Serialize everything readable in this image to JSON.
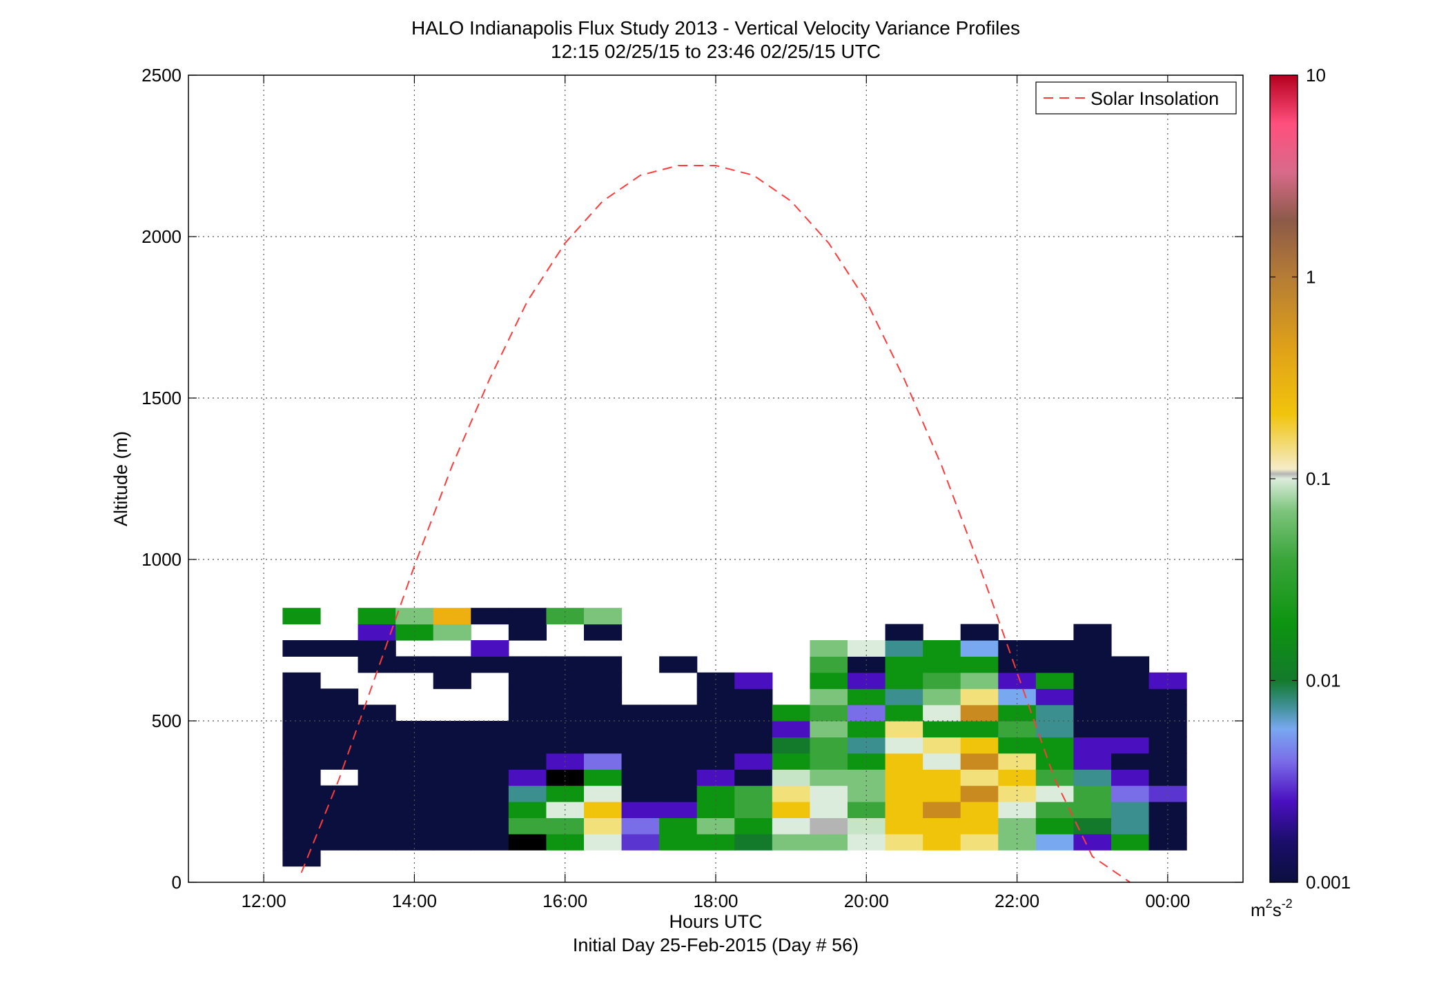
{
  "chart_data": {
    "type": "heatmap",
    "title": "HALO Indianapolis Flux Study 2013 - Vertical Velocity Variance Profiles",
    "subtitle": "12:15 02/25/15 to 23:46 02/25/15  UTC",
    "xlabel": "Hours UTC",
    "xlabel2": "Initial Day 25-Feb-2015 (Day # 56)",
    "ylabel": "Altitude (m)",
    "xlim": [
      11.0,
      25.0
    ],
    "ylim": [
      0,
      2500
    ],
    "x_ticks": [
      12,
      14,
      16,
      18,
      20,
      22,
      24
    ],
    "x_tick_labels": [
      "12:00",
      "14:00",
      "16:00",
      "18:00",
      "20:00",
      "22:00",
      "00:00"
    ],
    "y_ticks": [
      0,
      500,
      1000,
      1500,
      2000,
      2500
    ],
    "y_tick_labels": [
      "0",
      "500",
      "1000",
      "1500",
      "2000",
      "2500"
    ],
    "grid": true,
    "legend": {
      "location": "top-right",
      "entries": [
        "Solar Insolation"
      ]
    },
    "colorbar": {
      "scale": "log",
      "range": [
        0.001,
        10
      ],
      "ticks": [
        0.001,
        0.01,
        0.1,
        1,
        10
      ],
      "tick_labels": [
        "0.001",
        "0.01",
        "0.1",
        "1",
        "10"
      ],
      "unit_base": "m",
      "unit_exp1": "2",
      "unit_mid": "s",
      "unit_exp2": "-2"
    },
    "cells": {
      "x_start": 12.25,
      "x_step": 0.5,
      "y_step": 50,
      "rows_bottom_altitude": [
        50,
        100,
        150,
        200,
        250,
        300,
        350,
        400,
        450,
        500,
        550,
        600,
        650,
        700,
        750,
        800
      ],
      "columns": [
        [
          "dn",
          "dn",
          "dn",
          "dn",
          "dn",
          "dn",
          "dn",
          "dn",
          "dn",
          "dn",
          "dn",
          "dn",
          null,
          "dn",
          null,
          "g"
        ],
        [
          null,
          "dn",
          "dn",
          "dn",
          "dn",
          null,
          "dn",
          "dn",
          "dn",
          "dn",
          "dn",
          null,
          null,
          "dn",
          null,
          null
        ],
        [
          null,
          "dn",
          "dn",
          "dn",
          "dn",
          "dn",
          "dn",
          "dn",
          "dn",
          "dn",
          null,
          null,
          "dn",
          "dn",
          "pu",
          "g"
        ],
        [
          null,
          "dn",
          "dn",
          "dn",
          "dn",
          "dn",
          "dn",
          "dn",
          "dn",
          null,
          null,
          null,
          "dn",
          null,
          "g",
          "gl"
        ],
        [
          null,
          "dn",
          "dn",
          "dn",
          "dn",
          "dn",
          "dn",
          "dn",
          "dn",
          null,
          null,
          "dn",
          "dn",
          null,
          "gl",
          "o"
        ],
        [
          null,
          "dn",
          "dn",
          "dn",
          "dn",
          "dn",
          "dn",
          "dn",
          "dn",
          null,
          null,
          null,
          "dn",
          "pu",
          null,
          "dn"
        ],
        [
          null,
          "mg",
          "gm",
          "g",
          "tl",
          "pu",
          "dn",
          "dn",
          "dn",
          "dn",
          "dn",
          "dn",
          "dn",
          null,
          "dn",
          "dn"
        ],
        [
          null,
          "g",
          "gm",
          "wg",
          "g",
          "mg",
          "pu",
          "dn",
          "dn",
          "dn",
          "dn",
          "dn",
          "dn",
          null,
          null,
          "gm"
        ],
        [
          null,
          "wg",
          "yl",
          "y",
          "wg",
          "g",
          "pl",
          "dn",
          "dn",
          "dn",
          "dn",
          "dn",
          "dn",
          null,
          "dn",
          "gl"
        ],
        [
          null,
          "pm",
          "pl",
          "pu",
          "dn",
          "dn",
          "dn",
          "dn",
          "dn",
          "dn",
          null,
          null,
          null,
          null,
          null,
          null
        ],
        [
          null,
          "g",
          "g",
          "pu",
          "dn",
          "dn",
          "dn",
          "dn",
          "dn",
          "dn",
          null,
          null,
          "dn",
          null,
          null,
          null
        ],
        [
          null,
          "g",
          "gl",
          "g",
          "g",
          "pu",
          "dn",
          "dn",
          "dn",
          "dn",
          "dn",
          "dn",
          null,
          null,
          null,
          null
        ],
        [
          null,
          "dg",
          "g",
          "gm",
          "gm",
          "dn",
          "pu",
          "dn",
          "dn",
          "dn",
          "dn",
          "pu",
          null,
          null,
          null,
          null
        ],
        [
          null,
          "gl",
          "wg",
          "y",
          "yl",
          "gy",
          "g",
          "dg",
          "pu",
          "g",
          null,
          null,
          null,
          null,
          null,
          null
        ],
        [
          null,
          "gl",
          "gv",
          "wg",
          "wg",
          "gl",
          "gm",
          "gm",
          "gl",
          "gm",
          "gl",
          "g",
          "gm",
          "gl",
          null,
          null
        ],
        [
          null,
          "wg",
          "gy",
          "gm",
          "gl",
          "gl",
          "g",
          "tl",
          "g",
          "pl",
          "g",
          "pu",
          "dn",
          "wg",
          null,
          null
        ],
        [
          null,
          "yl",
          "y",
          "y",
          "y",
          "y",
          "y",
          "wg",
          "yl",
          "g",
          "tl",
          "g",
          "g",
          "tl",
          "dn",
          null
        ],
        [
          null,
          "y",
          "y",
          "gd",
          "y",
          "y",
          "wg",
          "yl",
          "g",
          "wg",
          "gl",
          "gm",
          "g",
          "g",
          null,
          null
        ],
        [
          null,
          "yl",
          "y",
          "y",
          "gd",
          "yl",
          "gd",
          "y",
          "g",
          "gd",
          "yl",
          "gl",
          "g",
          "bl",
          "dn",
          null
        ],
        [
          null,
          "gl",
          "gl",
          "wg",
          "yl",
          "y",
          "yl",
          "g",
          "gm",
          "g",
          "bl",
          "pu",
          "dn",
          "dn",
          null,
          null
        ],
        [
          null,
          "bl",
          "g",
          "gm",
          "wg",
          "gm",
          "g",
          "g",
          "tl",
          "tl",
          "pu",
          "g",
          "dn",
          "dn",
          null,
          null
        ],
        [
          null,
          "pu",
          "dg",
          "gm",
          "gm",
          "tl",
          "pu",
          "pu",
          "dn",
          "dn",
          "dn",
          "dn",
          "dn",
          "dn",
          "dn",
          null
        ],
        [
          null,
          "g",
          "tl",
          "tl",
          "pl",
          "pu",
          "dn",
          "pu",
          "dn",
          "dn",
          "dn",
          "dn",
          "dn",
          null,
          null,
          null
        ],
        [
          null,
          "dn",
          "dn",
          "dn",
          "pm",
          "dn",
          "dn",
          "dn",
          "dn",
          "dn",
          "dn",
          "pu",
          null,
          null,
          null,
          null
        ]
      ],
      "color_key": {
        "dn": "#0b0f3e",
        "pu": "#4a0fbf",
        "pm": "#5b35d0",
        "pl": "#7a6de8",
        "bl": "#78a8f0",
        "tl": "#3c8f8f",
        "dg": "#137a2c",
        "g": "#0d9410",
        "gm": "#3aa53a",
        "gl": "#7cc47c",
        "wg": "#dcecdc",
        "gv": "#b4b4b4",
        "gy": "#c6e4c6",
        "yl": "#f2e07a",
        "y": "#f1c40c",
        "o": "#eeb010",
        "gd": "#c98a20"
      }
    },
    "series": [
      {
        "name": "Solar Insolation",
        "style": "dashed",
        "color": "#ff3b3b",
        "x": [
          12.5,
          13.0,
          13.5,
          14.0,
          14.5,
          15.0,
          15.5,
          16.0,
          16.5,
          17.0,
          17.5,
          18.0,
          18.5,
          19.0,
          19.5,
          20.0,
          20.5,
          21.0,
          21.5,
          22.0,
          22.5,
          23.0,
          23.5
        ],
        "values": [
          30,
          320,
          650,
          980,
          1290,
          1560,
          1800,
          1980,
          2110,
          2190,
          2220,
          2220,
          2190,
          2110,
          1980,
          1800,
          1560,
          1290,
          980,
          650,
          320,
          80,
          0
        ]
      }
    ]
  }
}
